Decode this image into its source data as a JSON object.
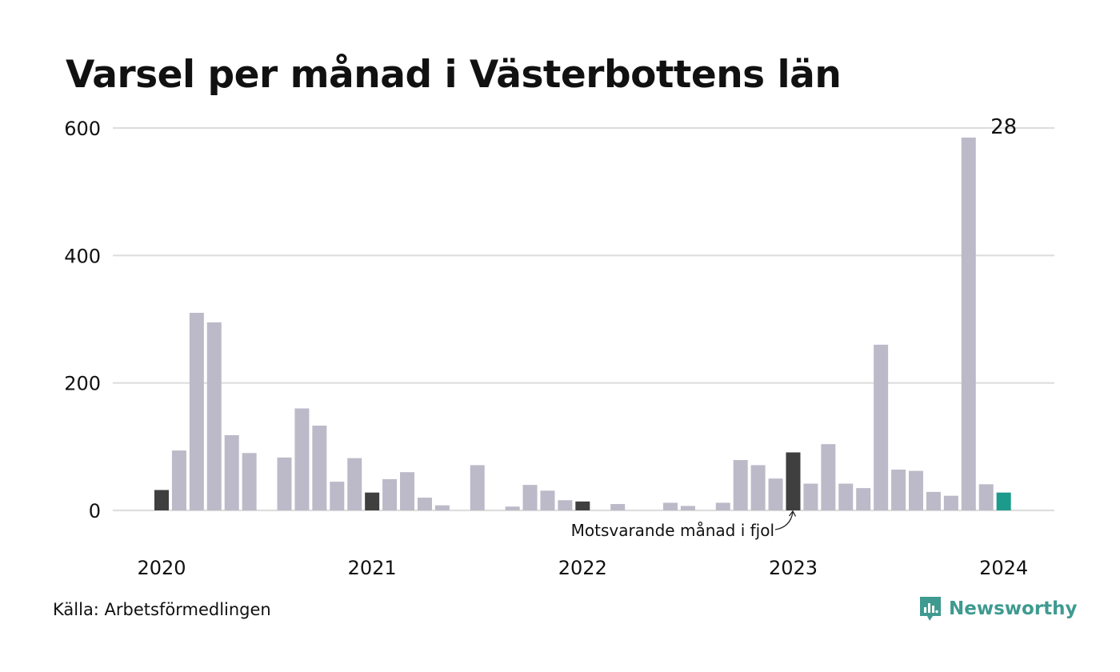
{
  "chart_data": {
    "type": "bar",
    "title": "Varsel per månad i Västerbottens län",
    "source": "Källa: Arbetsförmedlingen",
    "brand": "Newsworthy",
    "annotation": "Motsvarande månad i fjol",
    "last_value_label": "28",
    "ylim": [
      0,
      600
    ],
    "yticks": [
      0,
      200,
      400,
      600
    ],
    "xtick_labels": [
      "2020",
      "2021",
      "2022",
      "2023",
      "2024"
    ],
    "grid": true,
    "colors": {
      "default": "#bcbac8",
      "highlight": "#3f3f3f",
      "current": "#1c9a8c",
      "grid": "#dedede"
    },
    "categories": [
      "2020-01",
      "2020-02",
      "2020-03",
      "2020-04",
      "2020-05",
      "2020-06",
      "2020-07",
      "2020-08",
      "2020-09",
      "2020-10",
      "2020-11",
      "2020-12",
      "2021-01",
      "2021-02",
      "2021-03",
      "2021-04",
      "2021-05",
      "2021-06",
      "2021-07",
      "2021-08",
      "2021-09",
      "2021-10",
      "2021-11",
      "2021-12",
      "2022-01",
      "2022-02",
      "2022-03",
      "2022-04",
      "2022-05",
      "2022-06",
      "2022-07",
      "2022-08",
      "2022-09",
      "2022-10",
      "2022-11",
      "2022-12",
      "2023-01",
      "2023-02",
      "2023-03",
      "2023-04",
      "2023-05",
      "2023-06",
      "2023-07",
      "2023-08",
      "2023-09",
      "2023-10",
      "2023-11",
      "2023-12",
      "2024-01"
    ],
    "values": [
      32,
      94,
      310,
      295,
      118,
      90,
      0,
      83,
      160,
      133,
      45,
      82,
      28,
      49,
      60,
      20,
      8,
      0,
      71,
      0,
      6,
      40,
      31,
      16,
      14,
      0,
      10,
      0,
      0,
      12,
      7,
      0,
      12,
      79,
      71,
      50,
      91,
      42,
      104,
      42,
      35,
      260,
      64,
      62,
      29,
      23,
      585,
      41,
      28
    ],
    "highlight_months": [
      "2020-01",
      "2021-01",
      "2022-01",
      "2023-01"
    ],
    "current_month": "2024-01"
  }
}
